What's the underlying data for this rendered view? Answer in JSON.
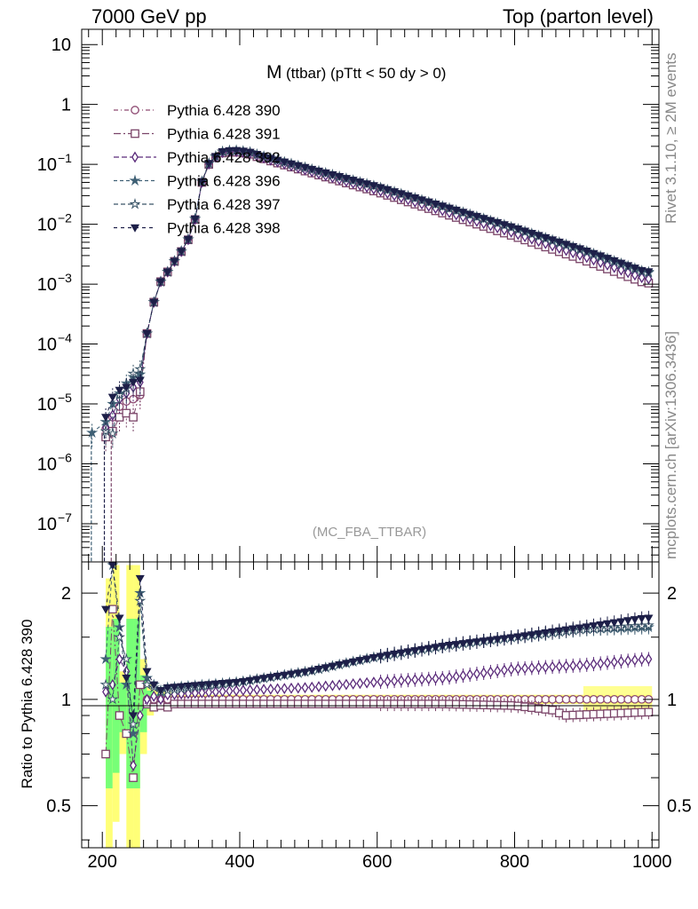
{
  "header": {
    "left": "7000 GeV pp",
    "right": "Top (parton level)"
  },
  "side_labels": {
    "rivet": "Rivet 3.1.10, ≥ 2M events",
    "mcplots": "mcplots.cern.ch [arXiv:1306.3436]"
  },
  "chart_data": [
    {
      "type": "line",
      "title_main": "M",
      "title_sub": "(ttbar) (pTtt < 50 dy > 0)",
      "watermark": "(MC_FBA_TTBAR)",
      "yscale": "log",
      "xlim": [
        170,
        1010
      ],
      "ylim": [
        2.3e-08,
        18
      ],
      "y_ticks": [
        {
          "v": 1e-07,
          "main": "10",
          "exp": "−7"
        },
        {
          "v": 1e-06,
          "main": "10",
          "exp": "−6"
        },
        {
          "v": 1e-05,
          "main": "10",
          "exp": "−5"
        },
        {
          "v": 0.0001,
          "main": "10",
          "exp": "−4"
        },
        {
          "v": 0.001,
          "main": "10",
          "exp": "−3"
        },
        {
          "v": 0.01,
          "main": "10",
          "exp": "−2"
        },
        {
          "v": 0.1,
          "main": "10",
          "exp": "−1"
        },
        {
          "v": 1,
          "main": "1",
          "exp": ""
        },
        {
          "v": 10,
          "main": "10",
          "exp": ""
        }
      ],
      "legend_position": "top-left",
      "series": [
        {
          "name": "Pythia 6.428 390",
          "color": "#8e4a72",
          "marker": "circle-open",
          "dash": "5,3,1,3",
          "scale": 1.0,
          "low": [
            [
              185,
              null
            ],
            [
              195,
              null
            ],
            [
              205,
              3.8e-06
            ],
            [
              215,
              6e-06
            ],
            [
              225,
              9e-06
            ],
            [
              235,
              1.1e-05
            ],
            [
              245,
              1.2e-05
            ],
            [
              255,
              1.4e-05
            ]
          ]
        },
        {
          "name": "Pythia 6.428 391",
          "color": "#7a4468",
          "marker": "square-open",
          "dash": "8,3,2,3",
          "scale": 0.97,
          "low": [
            [
              185,
              null
            ],
            [
              195,
              null
            ],
            [
              205,
              2.8e-06
            ],
            [
              215,
              3.5e-06
            ],
            [
              225,
              6e-06
            ],
            [
              235,
              7e-06
            ],
            [
              245,
              6e-06
            ],
            [
              255,
              1.6e-05
            ]
          ]
        },
        {
          "name": "Pythia 6.428 392",
          "color": "#5a2a7a",
          "marker": "diamond-open",
          "dash": "6,3",
          "scale": 1.15,
          "low": [
            [
              185,
              null
            ],
            [
              195,
              null
            ],
            [
              205,
              4e-06
            ],
            [
              215,
              6.5e-06
            ],
            [
              225,
              1.2e-05
            ],
            [
              235,
              1.5e-05
            ],
            [
              245,
              1.9e-05
            ],
            [
              255,
              2.3e-05
            ]
          ]
        },
        {
          "name": "Pythia 6.428 396",
          "color": "#3f6075",
          "marker": "star",
          "dash": "4,3",
          "scale": 1.45,
          "low": [
            [
              185,
              3.3e-06
            ],
            [
              195,
              null
            ],
            [
              205,
              5e-06
            ],
            [
              215,
              1e-05
            ],
            [
              225,
              1.5e-05
            ],
            [
              235,
              2.2e-05
            ],
            [
              245,
              2.8e-05
            ],
            [
              255,
              3.1e-05
            ]
          ]
        },
        {
          "name": "Pythia 6.428 397",
          "color": "#3a5568",
          "marker": "star-open",
          "dash": "5,3",
          "scale": 1.5,
          "low": [
            [
              185,
              null
            ],
            [
              195,
              null
            ],
            [
              205,
              3.5e-06
            ],
            [
              215,
              3.2e-06
            ],
            [
              225,
              1.4e-05
            ],
            [
              235,
              1.8e-05
            ],
            [
              245,
              3.2e-05
            ],
            [
              255,
              3.8e-05
            ]
          ]
        },
        {
          "name": "Pythia 6.428 398",
          "color": "#1d1f48",
          "marker": "triangle-down",
          "dash": "4,4",
          "scale": 1.52,
          "low": [
            [
              185,
              null
            ],
            [
              195,
              null
            ],
            [
              205,
              6e-06
            ],
            [
              215,
              1.3e-05
            ],
            [
              225,
              1.7e-05
            ],
            [
              235,
              1.9e-05
            ],
            [
              245,
              2.3e-05
            ],
            [
              255,
              2.5e-05
            ]
          ]
        }
      ],
      "reference_curve": {
        "x": [
          265,
          275,
          285,
          295,
          305,
          315,
          325,
          335,
          345,
          355,
          365,
          375,
          385,
          395,
          405,
          415,
          425,
          450,
          500,
          600,
          700,
          800,
          900,
          990
        ],
        "y": [
          0.00015,
          0.0005,
          0.0011,
          0.0016,
          0.0024,
          0.0035,
          0.0055,
          0.012,
          0.05,
          0.1,
          0.13,
          0.155,
          0.16,
          0.16,
          0.155,
          0.148,
          0.135,
          0.11,
          0.075,
          0.035,
          0.015,
          0.0064,
          0.0026,
          0.00107
        ]
      }
    },
    {
      "type": "line",
      "ylabel": "Ratio to Pythia 6.428 390",
      "xlabel": "",
      "xlim": [
        170,
        1010
      ],
      "ylim": [
        0.38,
        2.45
      ],
      "yscale": "log",
      "y_ticks": [
        0.5,
        1,
        2
      ],
      "x_ticks": [
        200,
        400,
        600,
        800,
        1000
      ],
      "band_colors": {
        "outer": "#ffff77",
        "inner": "#77ff77"
      },
      "series_ratio": {
        "Pythia 6.428 391": {
          "x": [
            205,
            215,
            225,
            235,
            245,
            255,
            265,
            275,
            285,
            295,
            305,
            700,
            800,
            860,
            870,
            990
          ],
          "y": [
            0.7,
            1.8,
            0.9,
            0.8,
            0.6,
            1.1,
            0.97,
            0.95,
            0.96,
            0.95,
            0.97,
            0.97,
            0.96,
            0.93,
            0.9,
            0.92
          ]
        },
        "Pythia 6.428 392": {
          "x": [
            205,
            215,
            225,
            235,
            245,
            255,
            265,
            275,
            285,
            295,
            400,
            500,
            600,
            700,
            800,
            900,
            990
          ],
          "y": [
            1.05,
            1.1,
            1.3,
            1.2,
            0.65,
            0.9,
            1.0,
            1.02,
            1.0,
            1.03,
            1.06,
            1.08,
            1.12,
            1.15,
            1.22,
            1.25,
            1.3
          ]
        },
        "Pythia 6.428 396": {
          "x": [
            205,
            215,
            225,
            235,
            245,
            255,
            265,
            275,
            285,
            295,
            400,
            500,
            600,
            700,
            800,
            900,
            990
          ],
          "y": [
            1.3,
            2.4,
            1.6,
            1.1,
            0.8,
            2.0,
            1.15,
            1.1,
            1.06,
            1.08,
            1.12,
            1.2,
            1.32,
            1.42,
            1.5,
            1.58,
            1.6
          ]
        },
        "Pythia 6.428 397": {
          "x": [
            205,
            215,
            225,
            235,
            245,
            255,
            265,
            275,
            285,
            295,
            400,
            500,
            600,
            700,
            800,
            900,
            990
          ],
          "y": [
            1.1,
            1.0,
            1.5,
            1.3,
            0.85,
            1.9,
            1.1,
            1.08,
            1.05,
            1.06,
            1.12,
            1.2,
            1.32,
            1.42,
            1.5,
            1.58,
            1.62
          ]
        },
        "Pythia 6.428 398": {
          "x": [
            205,
            215,
            225,
            235,
            245,
            255,
            265,
            275,
            285,
            295,
            400,
            500,
            600,
            700,
            800,
            900,
            990
          ],
          "y": [
            1.8,
            2.4,
            1.7,
            1.15,
            0.9,
            2.2,
            1.2,
            1.1,
            1.06,
            1.08,
            1.12,
            1.2,
            1.32,
            1.42,
            1.5,
            1.6,
            1.7
          ]
        }
      }
    }
  ]
}
